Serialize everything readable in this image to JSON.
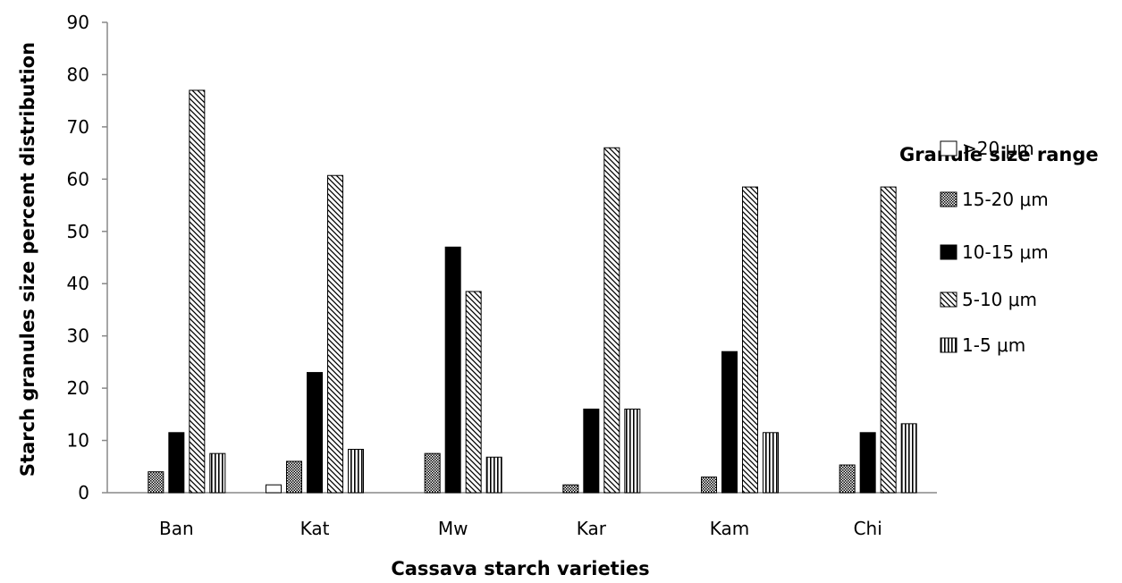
{
  "chart_data": {
    "type": "bar",
    "categories": [
      "Ban",
      "Kat",
      "Mw",
      "Kar",
      "Kam",
      "Chi"
    ],
    "series": [
      {
        "name": ">20 μm",
        "pattern": "white",
        "values": [
          0,
          1.5,
          0,
          0,
          0,
          0
        ]
      },
      {
        "name": "15-20 μm",
        "pattern": "dots",
        "values": [
          4,
          6,
          7.5,
          1.5,
          3,
          5.3
        ]
      },
      {
        "name": "10-15 μm",
        "pattern": "black",
        "values": [
          11.5,
          23,
          47,
          16,
          27,
          11.5
        ]
      },
      {
        "name": "5-10 μm",
        "pattern": "diagonal",
        "values": [
          77,
          60.7,
          38.5,
          66,
          58.5,
          58.5
        ]
      },
      {
        "name": "1-5 μm",
        "pattern": "vertical",
        "values": [
          7.5,
          8.3,
          6.8,
          16,
          11.5,
          13.2
        ]
      }
    ],
    "xlabel": "Cassava  starch varieties",
    "ylabel": "Starch granules size  percent distribution",
    "ylim": [
      0,
      90
    ],
    "yticks": [
      0,
      10,
      20,
      30,
      40,
      50,
      60,
      70,
      80,
      90
    ],
    "legend_title": "Granule size range",
    "legend_position": "right",
    "grid": false,
    "colors": {
      "bar_fill": "#000000",
      "bar_stroke": "#000000",
      "axis": "#888888",
      "background": "#ffffff"
    }
  }
}
